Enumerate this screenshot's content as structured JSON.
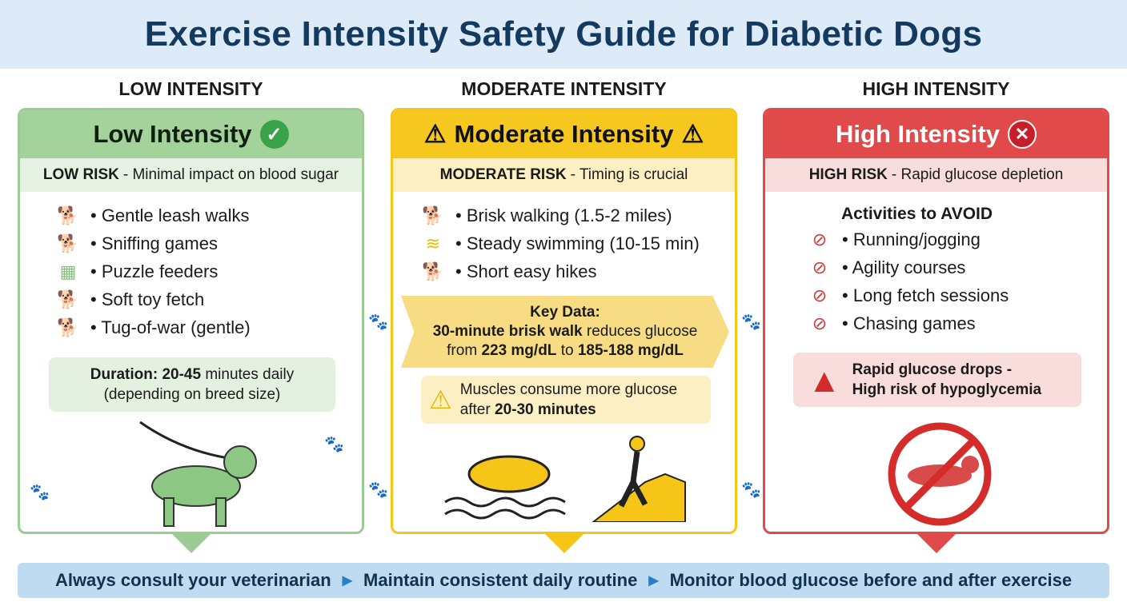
{
  "title": "Exercise Intensity Safety Guide for Diabetic Dogs",
  "colors": {
    "low": "#8fc58a",
    "moderate": "#f5c518",
    "high": "#e04a4a",
    "banner": "#dcebf7",
    "footer": "#bedbf1"
  },
  "low": {
    "column_title": "LOW INTENSITY",
    "header": "Low Intensity",
    "header_icon": "check-circle-icon",
    "risk_bold": "LOW RISK",
    "risk_text": "- Minimal impact on blood sugar",
    "items": [
      "• Gentle leash walks",
      "• Sniffing games",
      "• Puzzle feeders",
      "• Soft toy fetch",
      "• Tug-of-war (gentle)"
    ],
    "duration_bold": "Duration: 20-45",
    "duration_text": " minutes daily",
    "duration_note": "(depending on breed size)"
  },
  "moderate": {
    "column_title": "MODERATE INTENSITY",
    "header": "Moderate Intensity",
    "header_icon": "warning-icon",
    "risk_bold": "MODERATE RISK",
    "risk_text": "- Timing is crucial",
    "items": [
      "• Brisk walking (1.5-2 miles)",
      "• Steady swimming (10-15 min)",
      "• Short easy hikes"
    ],
    "key_title": "Key Data:",
    "key_bold1": "30-minute brisk walk",
    "key_text1": " reduces glucose",
    "key_text2": "from ",
    "key_bold2": "223 mg/dL",
    "key_text3": " to ",
    "key_bold3": "185-188 mg/dL",
    "note_text": "Muscles consume more glucose",
    "note_text2": "after ",
    "note_bold": "20-30 minutes"
  },
  "high": {
    "column_title": "HIGH INTENSITY",
    "header": "High Intensity",
    "header_icon": "x-circle-icon",
    "risk_bold": "HIGH RISK",
    "risk_text": "- Rapid glucose depletion",
    "avoid_title": "Activities to AVOID",
    "items": [
      "• Running/jogging",
      "• Agility courses",
      "• Long fetch sessions",
      "• Chasing games"
    ],
    "alert_line1": "Rapid glucose drops -",
    "alert_line2": "High risk of hypoglycemia"
  },
  "footer": [
    "Always consult your veterinarian",
    "Maintain consistent daily routine",
    "Monitor blood glucose before and after exercise"
  ]
}
